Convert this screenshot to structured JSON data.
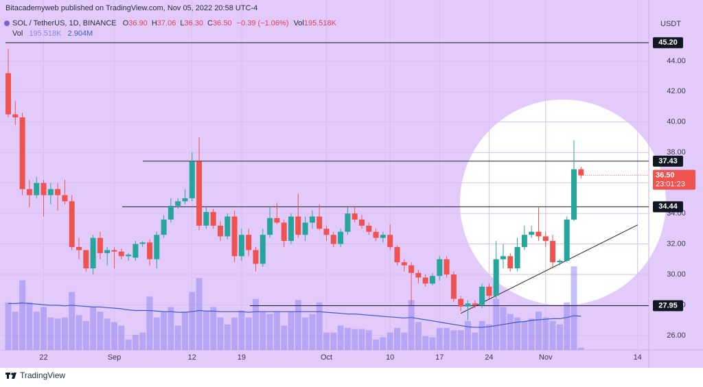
{
  "chart_data": {
    "type": "candlestick",
    "title": "Bitacademyweb published on TradingView.com, Nov 05, 2022 20:58 UTC-4",
    "symbol": "SOL / TetherUS, 1D, BINANCE",
    "ohlc_legend": [
      {
        "key": "O",
        "label": "36.90"
      },
      {
        "key": "H",
        "label": "37.06"
      },
      {
        "key": "L",
        "label": "36.30"
      },
      {
        "key": "C",
        "label": "36.50"
      }
    ],
    "change": "−0.39 (−1.06%)",
    "currency": "USDT",
    "brand": "TradingView",
    "categories": [
      null,
      null,
      null,
      null,
      null,
      "22",
      null,
      null,
      null,
      null,
      null,
      null,
      null,
      null,
      null,
      "Sep",
      null,
      null,
      null,
      null,
      null,
      null,
      null,
      null,
      null,
      null,
      "12",
      null,
      null,
      null,
      null,
      null,
      null,
      "19",
      null,
      null,
      null,
      null,
      null,
      null,
      null,
      null,
      null,
      null,
      null,
      "Oct",
      null,
      null,
      null,
      null,
      null,
      null,
      null,
      null,
      "10",
      null,
      null,
      null,
      null,
      null,
      null,
      "17",
      null,
      null,
      null,
      null,
      null,
      null,
      "24",
      null,
      null,
      null,
      null,
      null,
      null,
      null,
      "Nov",
      null,
      null,
      null,
      null,
      null,
      null,
      null,
      null,
      null,
      null,
      null,
      null,
      "14",
      null
    ],
    "open": [
      43.2,
      40.5,
      40.3,
      35.6,
      35.2,
      36.0,
      35.2,
      35.6,
      35.2,
      34.8,
      31.8,
      31.6,
      30.4,
      32.4,
      31.4,
      31.6,
      31.5,
      31.2,
      31.1,
      32.0,
      32.1,
      31.0,
      32.6,
      33.6,
      34.5,
      34.8,
      35.0,
      37.4,
      33.2,
      34.1,
      33.2,
      32.5,
      33.8,
      31.2,
      32.6,
      31.6,
      30.7,
      32.6,
      33.7,
      33.4,
      32.2,
      33.8,
      32.6,
      33.4,
      33.8,
      33.0,
      32.6,
      32.0,
      32.8,
      34.0,
      33.6,
      33.2,
      32.8,
      32.4,
      32.6,
      31.8,
      30.8,
      30.6,
      30.1,
      29.8,
      29.4,
      29.9,
      31.0,
      30.0,
      28.4,
      27.9,
      28.1,
      28.0,
      29.2,
      28.6,
      31.0,
      31.2,
      30.4,
      31.8,
      32.6,
      32.8,
      32.5,
      32.2,
      30.8,
      30.9,
      33.6,
      36.9,
      null,
      null,
      null,
      null,
      null,
      null,
      null,
      null,
      null
    ],
    "high": [
      44.8,
      41.4,
      40.6,
      36.2,
      36.4,
      36.2,
      36.0,
      36.0,
      36.2,
      35.2,
      32.4,
      31.6,
      32.6,
      32.8,
      31.8,
      31.8,
      31.7,
      31.4,
      32.2,
      32.2,
      32.3,
      32.8,
      33.9,
      35.0,
      35.0,
      35.6,
      38.0,
      39.0,
      34.4,
      34.3,
      33.5,
      34.0,
      34.2,
      33.0,
      33.0,
      31.8,
      33.0,
      34.4,
      34.7,
      33.6,
      34.0,
      35.3,
      33.8,
      34.2,
      34.6,
      33.2,
      32.8,
      33.0,
      34.4,
      34.4,
      33.9,
      33.4,
      33.0,
      32.8,
      33.3,
      31.9,
      31.0,
      30.8,
      30.3,
      30.0,
      30.1,
      31.2,
      31.2,
      30.2,
      28.6,
      28.3,
      28.3,
      29.4,
      29.4,
      32.2,
      32.0,
      31.4,
      32.4,
      33.2,
      33.2,
      34.4,
      32.8,
      32.6,
      31.0,
      33.8,
      38.8,
      37.06,
      null,
      null,
      null,
      null,
      null,
      null,
      null,
      null,
      null
    ],
    "low": [
      40.3,
      39.8,
      35.2,
      34.4,
      35.0,
      33.8,
      34.6,
      34.2,
      34.6,
      31.6,
      31.0,
      30.2,
      30.0,
      31.0,
      30.6,
      30.4,
      31.0,
      30.9,
      30.9,
      31.8,
      30.6,
      30.4,
      32.4,
      33.4,
      34.3,
      34.6,
      34.8,
      32.9,
      33.0,
      33.0,
      32.2,
      32.3,
      30.8,
      30.9,
      31.2,
      30.2,
      30.5,
      32.4,
      33.3,
      31.8,
      32.0,
      32.4,
      32.2,
      33.0,
      32.9,
      32.2,
      31.8,
      31.8,
      32.6,
      33.4,
      33.0,
      32.6,
      32.2,
      32.1,
      31.6,
      30.6,
      30.2,
      28.0,
      29.4,
      29.2,
      29.3,
      29.6,
      29.8,
      28.2,
      27.6,
      27.0,
      27.8,
      27.8,
      28.4,
      28.4,
      30.4,
      30.2,
      30.2,
      31.6,
      32.4,
      32.2,
      31.8,
      30.4,
      30.6,
      30.8,
      33.5,
      36.3,
      null,
      null,
      null,
      null,
      null,
      null,
      null,
      null,
      null
    ],
    "close": [
      40.5,
      40.3,
      35.6,
      35.2,
      36.0,
      35.2,
      35.6,
      35.2,
      34.8,
      31.8,
      31.6,
      30.4,
      32.4,
      31.4,
      31.6,
      31.5,
      31.2,
      31.3,
      32.0,
      32.1,
      31.0,
      32.6,
      33.6,
      34.5,
      34.8,
      35.0,
      37.4,
      33.2,
      34.1,
      33.2,
      32.5,
      33.8,
      31.2,
      32.6,
      31.6,
      30.7,
      32.6,
      33.7,
      33.4,
      32.2,
      33.8,
      32.6,
      33.4,
      33.8,
      33.0,
      32.6,
      32.0,
      32.8,
      34.0,
      33.6,
      33.2,
      32.8,
      32.4,
      32.6,
      31.8,
      30.8,
      30.6,
      30.1,
      29.8,
      29.4,
      29.9,
      31.0,
      30.0,
      28.4,
      27.9,
      28.1,
      28.0,
      29.2,
      28.6,
      31.0,
      31.2,
      30.4,
      31.8,
      32.6,
      32.8,
      32.5,
      32.2,
      30.8,
      30.9,
      33.6,
      36.9,
      36.5,
      null,
      null,
      null,
      null,
      null,
      null,
      null,
      null,
      null
    ],
    "up_color": "#26a69a",
    "down_color": "#ef5350",
    "ylim": [
      25.05,
      46.2
    ],
    "yticks": [
      {
        "value": 26,
        "label": "26.00"
      },
      {
        "value": 28,
        "label": "28.00"
      },
      {
        "value": 30,
        "label": "30.00"
      },
      {
        "value": 32,
        "label": "32.00"
      },
      {
        "value": 34,
        "label": "34.00"
      },
      {
        "value": 36,
        "label": "36.00"
      },
      {
        "value": 38,
        "label": "38.00"
      },
      {
        "value": 40,
        "label": "40.00"
      },
      {
        "value": 42,
        "label": "42.00"
      },
      {
        "value": 44,
        "label": "44.00"
      }
    ],
    "grid": true,
    "levels": [
      {
        "value": 45.2,
        "label": "45.20"
      },
      {
        "value": 37.43,
        "label": "37.43"
      },
      {
        "value": 34.44,
        "label": "34.44"
      },
      {
        "value": 27.95,
        "label": "27.95"
      }
    ],
    "last_price": {
      "value": 36.5,
      "label": "36.50",
      "countdown": "23:01:23"
    },
    "trendline": {
      "x": [
        64,
        89
      ],
      "y": [
        27.45,
        33.25
      ],
      "color": "#222222"
    },
    "volume": {
      "name": "Vol",
      "color": "#8c82f0",
      "last_label": "195.518K",
      "values": [
        4100000,
        3300000,
        6000000,
        4100000,
        3300000,
        3700000,
        2800000,
        2700000,
        2800000,
        5000000,
        3000000,
        2500000,
        3700000,
        3300000,
        2700000,
        2400000,
        2100000,
        900000,
        1300000,
        1500000,
        4600000,
        2800000,
        3300000,
        3700000,
        2100000,
        3300000,
        5000000,
        6200000,
        3300000,
        3700000,
        2800000,
        2200000,
        2800000,
        3400000,
        2800000,
        4400000,
        3300000,
        3100000,
        3300000,
        2100000,
        3300000,
        4300000,
        2800000,
        3100000,
        4100000,
        1500000,
        1500000,
        2100000,
        1900000,
        1800000,
        1800000,
        1700000,
        900000,
        1100000,
        1500000,
        1900000,
        1500000,
        4300000,
        2400000,
        1200000,
        1100000,
        1900000,
        1900000,
        1700000,
        1700000,
        2500000,
        1500000,
        2500000,
        2200000,
        4400000,
        3700000,
        3100000,
        2800000,
        2500000,
        2700000,
        3300000,
        2800000,
        2500000,
        2200000,
        4100000,
        7200000,
        195518,
        null,
        null,
        null,
        null,
        null,
        null,
        null,
        null,
        null
      ]
    },
    "volume_ma": {
      "color": "#3d5ac8",
      "last_label": "2.904M",
      "values": [
        4000000,
        4000000,
        4050000,
        4000000,
        3950000,
        3900000,
        3850000,
        3850000,
        3800000,
        3850000,
        3800000,
        3750000,
        3700000,
        3700000,
        3650000,
        3600000,
        3550000,
        3450000,
        3400000,
        3400000,
        3400000,
        3350000,
        3300000,
        3300000,
        3250000,
        3250000,
        3300000,
        3400000,
        3350000,
        3350000,
        3300000,
        3300000,
        3300000,
        3300000,
        3250000,
        3300000,
        3300000,
        3300000,
        3300000,
        3300000,
        3300000,
        3300000,
        3300000,
        3300000,
        3300000,
        3250000,
        3200000,
        3150000,
        3100000,
        3100000,
        3050000,
        3000000,
        2950000,
        2900000,
        2850000,
        2800000,
        2750000,
        2800000,
        2700000,
        2600000,
        2500000,
        2400000,
        2300000,
        2200000,
        2100000,
        2000000,
        1950000,
        1950000,
        2000000,
        2100000,
        2200000,
        2300000,
        2400000,
        2450000,
        2550000,
        2600000,
        2650000,
        2700000,
        2700000,
        2800000,
        2950000,
        2904000,
        null,
        null,
        null,
        null,
        null,
        null,
        null,
        null,
        null
      ]
    },
    "vol_lim": [
      0,
      27800000
    ]
  }
}
